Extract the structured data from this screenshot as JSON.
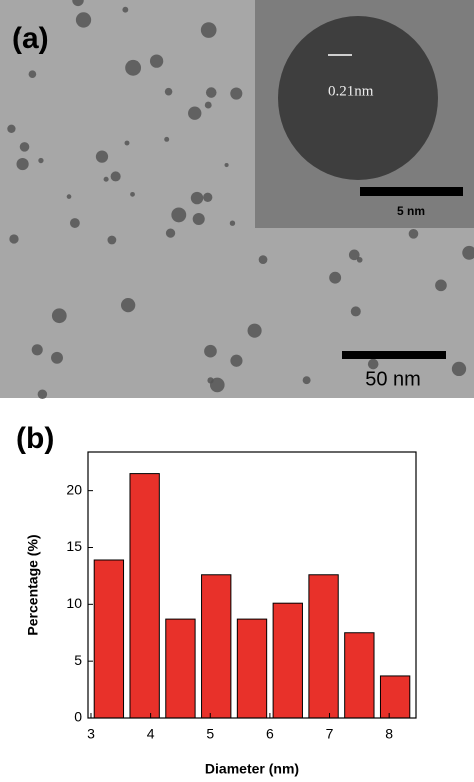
{
  "panel_a": {
    "label": "(a)",
    "lattice_spacing": "0.21nm",
    "inset_scale_bar": "5 nm",
    "scale_bar": "50 nm"
  },
  "panel_b": {
    "label": "(b)"
  },
  "chart_data": {
    "type": "histogram",
    "xlabel": "Diameter (nm)",
    "ylabel": "Percentage (%)",
    "bins": [
      3.0,
      3.6,
      4.2,
      4.8,
      5.4,
      6.0,
      6.6,
      7.2,
      7.8,
      8.4
    ],
    "values": [
      13.9,
      21.5,
      8.7,
      12.6,
      8.7,
      10.1,
      12.6,
      7.5,
      3.7
    ],
    "color": "#e8312a",
    "xlim": [
      2.95,
      8.45
    ],
    "xticks": [
      3,
      4,
      5,
      6,
      7,
      8
    ],
    "ylim": [
      0,
      23.4
    ],
    "yticks": [
      0,
      5,
      10,
      15,
      20
    ]
  }
}
